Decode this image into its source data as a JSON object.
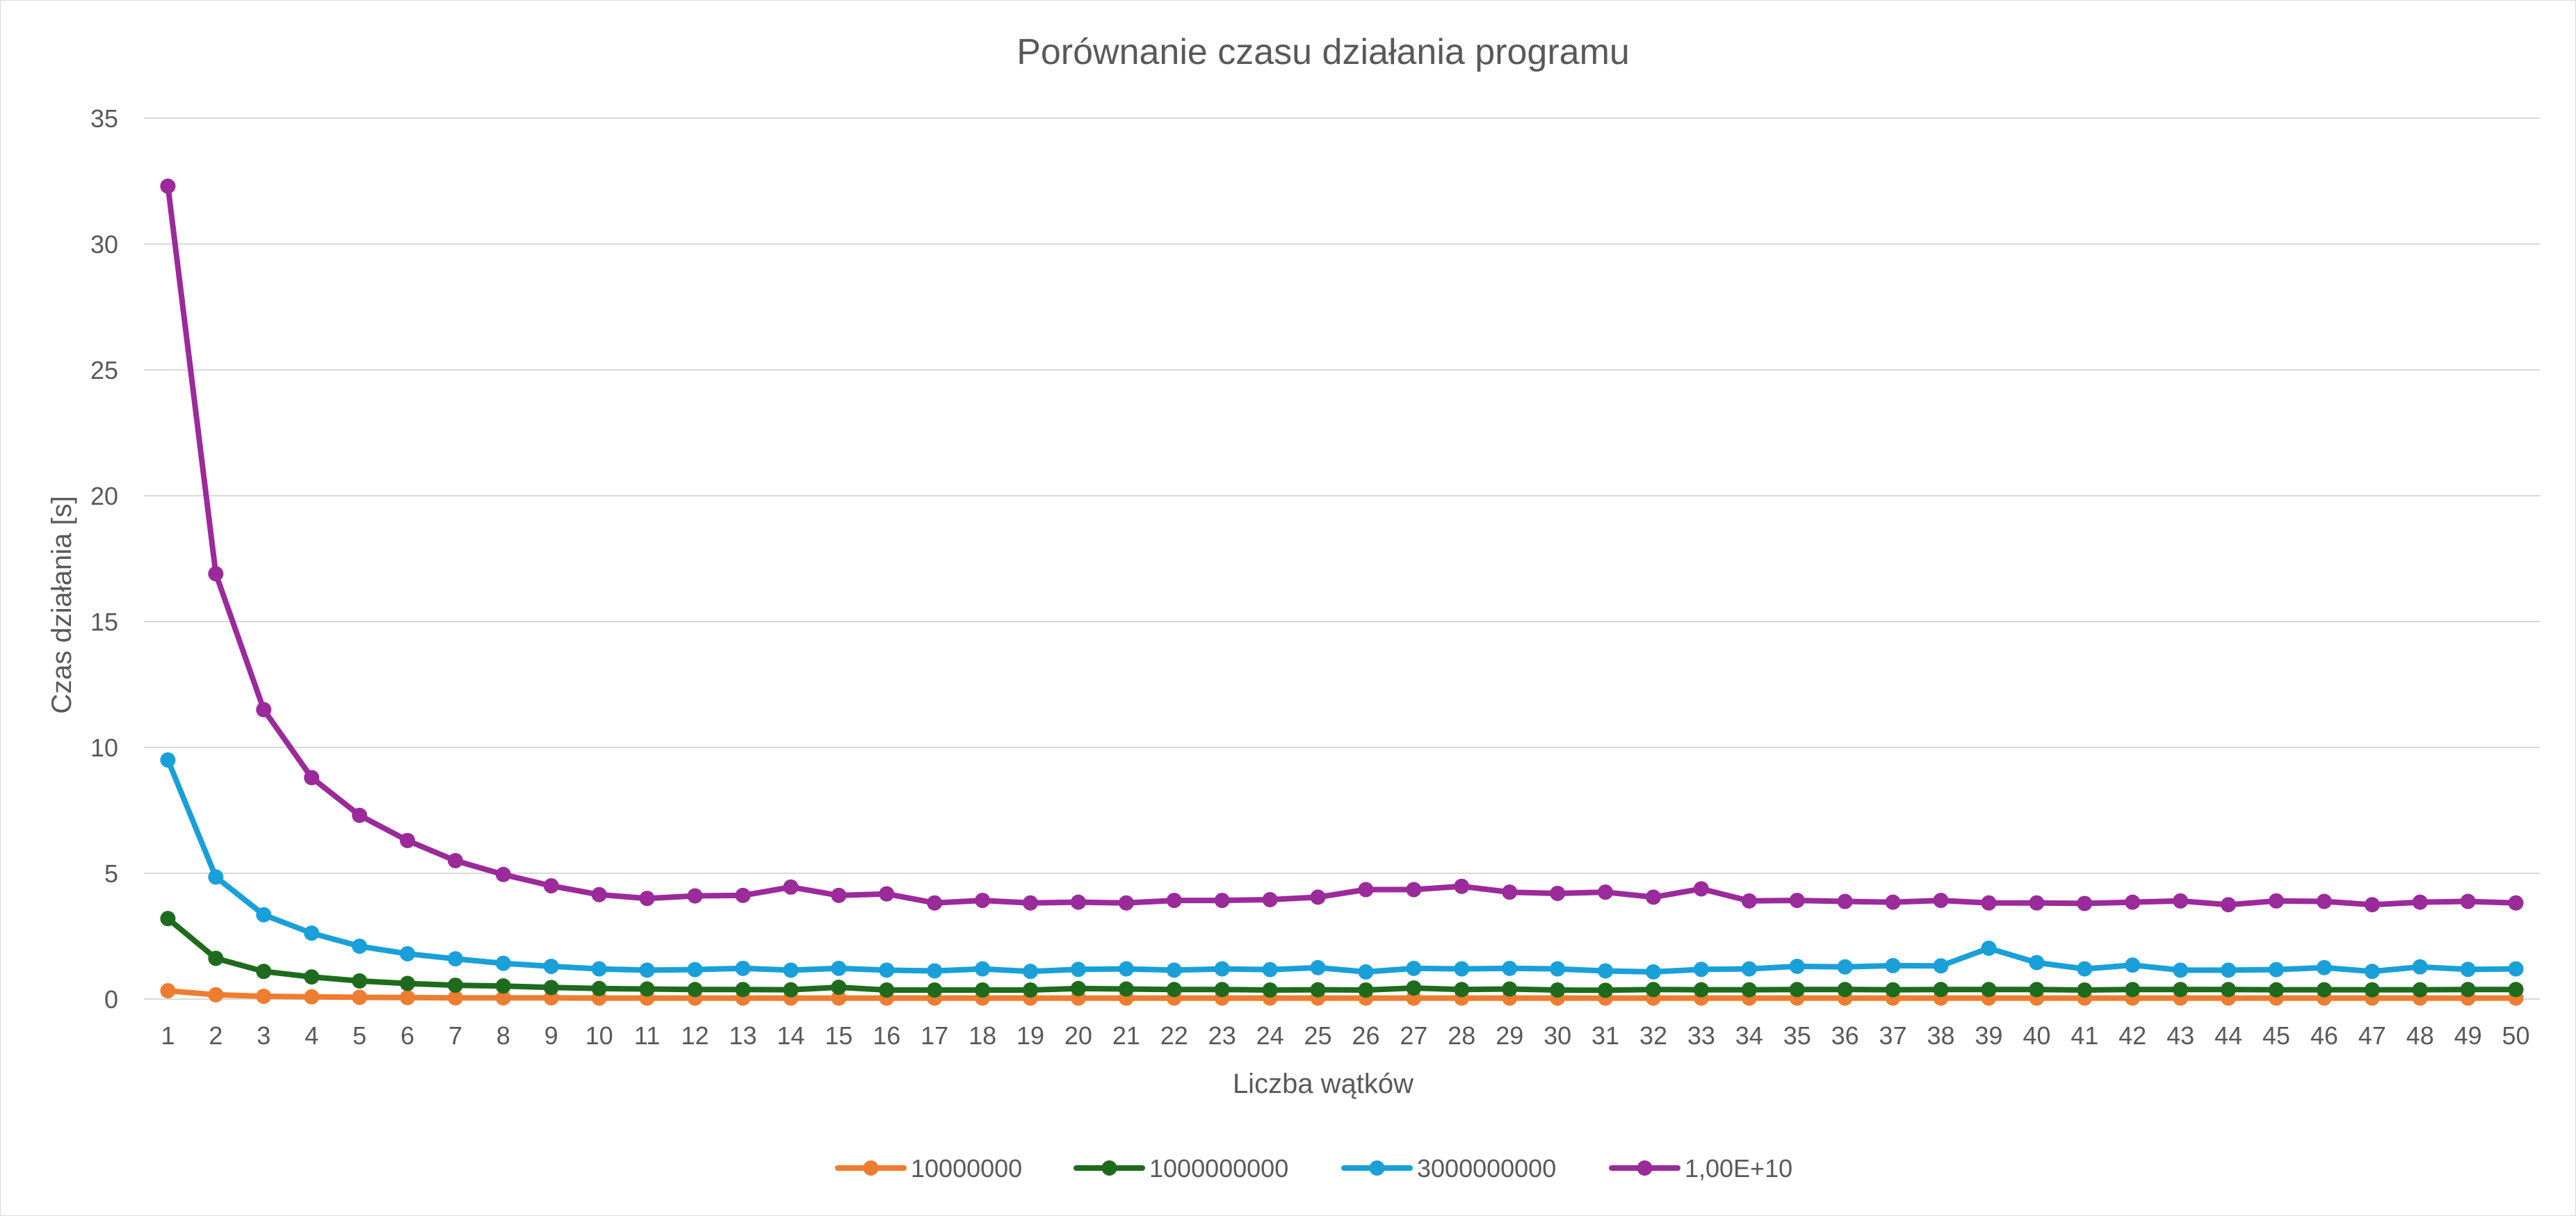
{
  "chart_data": {
    "type": "line",
    "title": "Porównanie czasu działania programu",
    "xlabel": "Liczba wątków",
    "ylabel": "Czas działania [s]",
    "ylim": [
      0,
      35
    ],
    "yticks": [
      0,
      5,
      10,
      15,
      20,
      25,
      30,
      35
    ],
    "grid": true,
    "legend_position": "bottom",
    "x": [
      1,
      2,
      3,
      4,
      5,
      6,
      7,
      8,
      9,
      10,
      11,
      12,
      13,
      14,
      15,
      16,
      17,
      18,
      19,
      20,
      21,
      22,
      23,
      24,
      25,
      26,
      27,
      28,
      29,
      30,
      31,
      32,
      33,
      34,
      35,
      36,
      37,
      38,
      39,
      40,
      41,
      42,
      43,
      44,
      45,
      46,
      47,
      48,
      49,
      50
    ],
    "series": [
      {
        "name": "10000000",
        "color": "#ED7D31",
        "values": [
          0.33,
          0.17,
          0.11,
          0.09,
          0.07,
          0.06,
          0.05,
          0.05,
          0.05,
          0.04,
          0.04,
          0.04,
          0.04,
          0.04,
          0.04,
          0.04,
          0.04,
          0.04,
          0.04,
          0.04,
          0.04,
          0.04,
          0.04,
          0.04,
          0.04,
          0.04,
          0.04,
          0.04,
          0.04,
          0.04,
          0.04,
          0.04,
          0.04,
          0.04,
          0.04,
          0.04,
          0.04,
          0.04,
          0.04,
          0.04,
          0.04,
          0.04,
          0.04,
          0.04,
          0.04,
          0.04,
          0.04,
          0.04,
          0.04,
          0.04
        ]
      },
      {
        "name": "1000000000",
        "color": "#1E6B1E",
        "values": [
          3.2,
          1.62,
          1.1,
          0.88,
          0.72,
          0.62,
          0.55,
          0.52,
          0.46,
          0.42,
          0.4,
          0.38,
          0.38,
          0.37,
          0.47,
          0.36,
          0.36,
          0.36,
          0.36,
          0.42,
          0.4,
          0.38,
          0.38,
          0.36,
          0.37,
          0.36,
          0.44,
          0.38,
          0.4,
          0.36,
          0.35,
          0.38,
          0.37,
          0.37,
          0.38,
          0.38,
          0.37,
          0.38,
          0.38,
          0.38,
          0.36,
          0.38,
          0.38,
          0.38,
          0.37,
          0.37,
          0.37,
          0.37,
          0.38,
          0.38
        ]
      },
      {
        "name": "3000000000",
        "color": "#1AA0D8",
        "values": [
          9.5,
          4.85,
          3.35,
          2.62,
          2.1,
          1.8,
          1.6,
          1.42,
          1.3,
          1.2,
          1.15,
          1.17,
          1.22,
          1.15,
          1.22,
          1.15,
          1.12,
          1.2,
          1.1,
          1.18,
          1.2,
          1.15,
          1.2,
          1.17,
          1.25,
          1.08,
          1.22,
          1.2,
          1.22,
          1.2,
          1.12,
          1.08,
          1.18,
          1.2,
          1.3,
          1.28,
          1.33,
          1.32,
          2.02,
          1.45,
          1.2,
          1.35,
          1.15,
          1.15,
          1.17,
          1.25,
          1.1,
          1.28,
          1.18,
          1.2
        ]
      },
      {
        "name": "1,00E+10",
        "color": "#9B2A9B",
        "values": [
          32.3,
          16.9,
          11.5,
          8.8,
          7.3,
          6.3,
          5.5,
          4.95,
          4.5,
          4.15,
          4.0,
          4.1,
          4.12,
          4.45,
          4.12,
          4.18,
          3.82,
          3.92,
          3.82,
          3.85,
          3.82,
          3.92,
          3.92,
          3.95,
          4.05,
          4.35,
          4.35,
          4.48,
          4.25,
          4.2,
          4.25,
          4.05,
          4.38,
          3.9,
          3.92,
          3.88,
          3.85,
          3.92,
          3.82,
          3.82,
          3.8,
          3.85,
          3.9,
          3.75,
          3.9,
          3.88,
          3.75,
          3.85,
          3.88,
          3.82
        ]
      }
    ]
  }
}
